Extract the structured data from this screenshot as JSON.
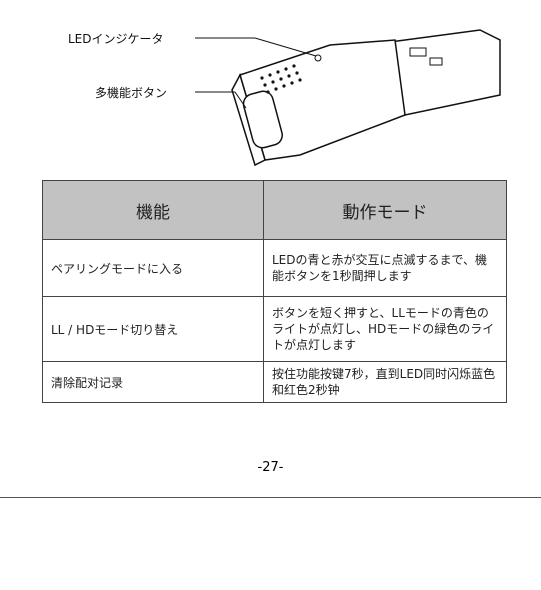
{
  "callouts": {
    "led": "LEDインジケータ",
    "button": "多機能ボタン"
  },
  "table": {
    "header": [
      "機能",
      "動作モード"
    ],
    "rows": [
      [
        "ペアリングモードに入る",
        "LEDの青と赤が交互に点滅するまで、機能ボタンを1秒間押します"
      ],
      [
        "LL / HDモード切り替え",
        "ボタンを短く押すと、LLモードの青色のライトが点灯し、HDモードの緑色のライトが点灯します"
      ],
      [
        "清除配对记录",
        "按住功能按键7秒，直到LED同时闪烁蓝色和红色2秒钟"
      ]
    ]
  },
  "page_number": "-27-"
}
